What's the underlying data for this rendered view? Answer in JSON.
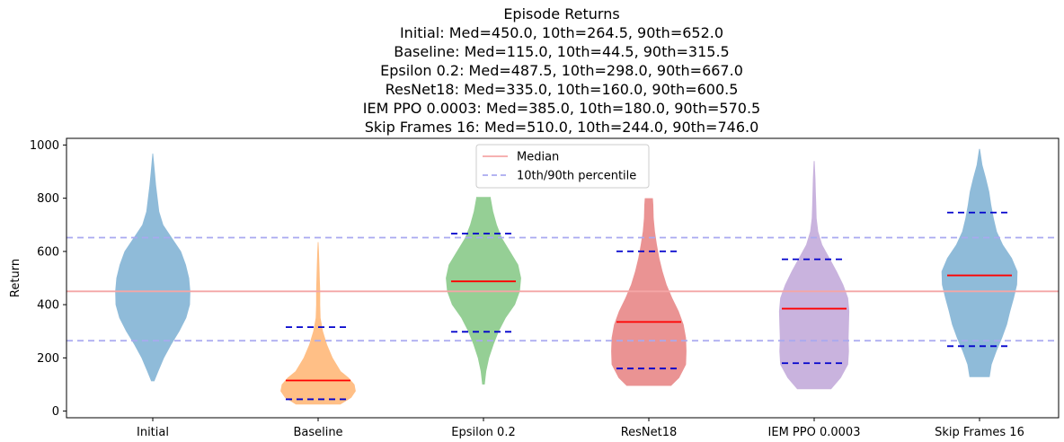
{
  "chart_data": {
    "type": "violin",
    "title": "Episode Returns",
    "subtitles": [
      "Initial: Med=450.0, 10th=264.5, 90th=652.0",
      "Baseline: Med=115.0, 10th=44.5, 90th=315.5",
      "Epsilon 0.2: Med=487.5, 10th=298.0, 90th=667.0",
      "ResNet18: Med=335.0, 10th=160.0, 90th=600.5",
      "IEM PPO 0.0003: Med=385.0, 10th=180.0, 90th=570.5",
      "Skip Frames 16: Med=510.0, 10th=244.0, 90th=746.0"
    ],
    "ylabel": "Return",
    "xlabel": "",
    "ylim": [
      -25,
      1025
    ],
    "yticks": [
      0,
      200,
      400,
      600,
      800,
      1000
    ],
    "categories": [
      "Initial",
      "Baseline",
      "Epsilon 0.2",
      "ResNet18",
      "IEM PPO 0.0003",
      "Skip Frames 16"
    ],
    "series": [
      {
        "label": "Initial",
        "color": "#1f77b4",
        "median": null,
        "p10": null,
        "p90": null,
        "profile": [
          [
            112,
            0.04
          ],
          [
            150,
            0.14
          ],
          [
            200,
            0.28
          ],
          [
            250,
            0.46
          ],
          [
            300,
            0.66
          ],
          [
            350,
            0.83
          ],
          [
            400,
            0.92
          ],
          [
            450,
            0.93
          ],
          [
            500,
            0.9
          ],
          [
            550,
            0.82
          ],
          [
            600,
            0.7
          ],
          [
            650,
            0.48
          ],
          [
            700,
            0.26
          ],
          [
            750,
            0.16
          ],
          [
            800,
            0.12
          ],
          [
            850,
            0.08
          ],
          [
            900,
            0.05
          ],
          [
            968,
            0.01
          ]
        ]
      },
      {
        "label": "Baseline",
        "color": "#ff7f0e",
        "median": 115.0,
        "p10": 44.5,
        "p90": 315.5,
        "profile": [
          [
            25,
            0.55
          ],
          [
            50,
            0.82
          ],
          [
            75,
            0.93
          ],
          [
            100,
            0.9
          ],
          [
            125,
            0.76
          ],
          [
            150,
            0.56
          ],
          [
            200,
            0.36
          ],
          [
            250,
            0.22
          ],
          [
            300,
            0.12
          ],
          [
            350,
            0.06
          ],
          [
            400,
            0.05
          ],
          [
            450,
            0.05
          ],
          [
            500,
            0.04
          ],
          [
            550,
            0.03
          ],
          [
            600,
            0.02
          ],
          [
            635,
            0.01
          ]
        ]
      },
      {
        "label": "Epsilon 0.2",
        "color": "#2ca02c",
        "median": 487.5,
        "p10": 298.0,
        "p90": 667.0,
        "profile": [
          [
            100,
            0.03
          ],
          [
            150,
            0.07
          ],
          [
            200,
            0.14
          ],
          [
            250,
            0.25
          ],
          [
            300,
            0.38
          ],
          [
            350,
            0.55
          ],
          [
            400,
            0.78
          ],
          [
            450,
            0.9
          ],
          [
            500,
            0.93
          ],
          [
            550,
            0.86
          ],
          [
            600,
            0.66
          ],
          [
            650,
            0.46
          ],
          [
            700,
            0.33
          ],
          [
            750,
            0.24
          ],
          [
            800,
            0.18
          ],
          [
            805,
            0.18
          ]
        ]
      },
      {
        "label": "ResNet18",
        "color": "#d62728",
        "median": 335.0,
        "p10": 160.0,
        "p90": 600.5,
        "profile": [
          [
            95,
            0.55
          ],
          [
            125,
            0.75
          ],
          [
            175,
            0.92
          ],
          [
            225,
            0.93
          ],
          [
            275,
            0.92
          ],
          [
            325,
            0.86
          ],
          [
            375,
            0.74
          ],
          [
            425,
            0.58
          ],
          [
            475,
            0.44
          ],
          [
            525,
            0.34
          ],
          [
            575,
            0.26
          ],
          [
            625,
            0.2
          ],
          [
            675,
            0.15
          ],
          [
            725,
            0.12
          ],
          [
            775,
            0.11
          ],
          [
            800,
            0.1
          ]
        ]
      },
      {
        "label": "IEM PPO 0.0003",
        "color": "#9467bd",
        "median": 385.0,
        "p10": 180.0,
        "p90": 570.5,
        "profile": [
          [
            82,
            0.42
          ],
          [
            125,
            0.66
          ],
          [
            175,
            0.84
          ],
          [
            225,
            0.86
          ],
          [
            275,
            0.85
          ],
          [
            325,
            0.86
          ],
          [
            375,
            0.87
          ],
          [
            425,
            0.84
          ],
          [
            475,
            0.72
          ],
          [
            525,
            0.56
          ],
          [
            575,
            0.38
          ],
          [
            625,
            0.2
          ],
          [
            675,
            0.1
          ],
          [
            725,
            0.06
          ],
          [
            775,
            0.05
          ],
          [
            825,
            0.04
          ],
          [
            875,
            0.03
          ],
          [
            940,
            0.01
          ]
        ]
      },
      {
        "label": "Skip Frames 16",
        "color": "#1f77b4",
        "median": 510.0,
        "p10": 244.0,
        "p90": 746.0,
        "profile": [
          [
            128,
            0.25
          ],
          [
            175,
            0.3
          ],
          [
            225,
            0.42
          ],
          [
            275,
            0.56
          ],
          [
            325,
            0.68
          ],
          [
            375,
            0.76
          ],
          [
            425,
            0.85
          ],
          [
            475,
            0.93
          ],
          [
            525,
            0.94
          ],
          [
            575,
            0.8
          ],
          [
            625,
            0.58
          ],
          [
            675,
            0.43
          ],
          [
            725,
            0.35
          ],
          [
            775,
            0.29
          ],
          [
            825,
            0.24
          ],
          [
            875,
            0.16
          ],
          [
            925,
            0.07
          ],
          [
            985,
            0.01
          ]
        ]
      }
    ],
    "reference_lines": {
      "median": {
        "value": 450.0,
        "color": "#f4a6a6"
      },
      "p10": {
        "value": 264.5,
        "color": "#a9a9f0"
      },
      "p90": {
        "value": 652.0,
        "color": "#a9a9f0"
      }
    },
    "stat_colors": {
      "median": "#ff0000",
      "percentile": "#0000cc"
    },
    "legend": {
      "position": "upper center",
      "entries": [
        "Median",
        "10th/90th percentile"
      ]
    }
  }
}
